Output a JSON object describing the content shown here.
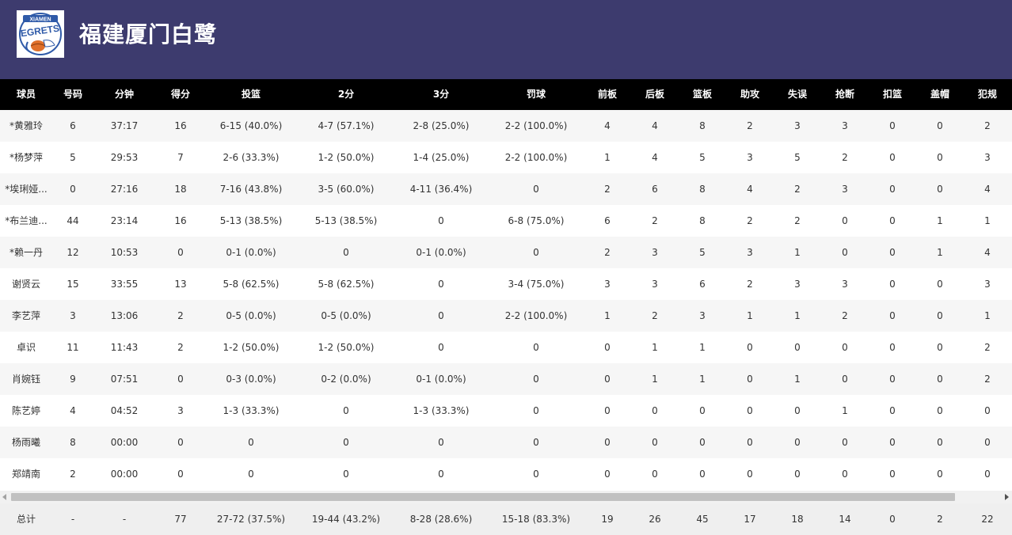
{
  "team": {
    "name": "福建厦门白鹭",
    "logo_text": "XIAMEN",
    "logo_word": "EGRETS"
  },
  "columns": [
    "球员",
    "号码",
    "分钟",
    "得分",
    "投篮",
    "2分",
    "3分",
    "罚球",
    "前板",
    "后板",
    "篮板",
    "助攻",
    "失误",
    "抢断",
    "扣篮",
    "盖帽",
    "犯规"
  ],
  "players": [
    [
      "*黄雅玲",
      "6",
      "37:17",
      "16",
      "6-15 (40.0%)",
      "4-7 (57.1%)",
      "2-8 (25.0%)",
      "2-2 (100.0%)",
      "4",
      "4",
      "8",
      "2",
      "3",
      "3",
      "0",
      "0",
      "2"
    ],
    [
      "*杨梦萍",
      "5",
      "29:53",
      "7",
      "2-6 (33.3%)",
      "1-2 (50.0%)",
      "1-4 (25.0%)",
      "2-2 (100.0%)",
      "1",
      "4",
      "5",
      "3",
      "5",
      "2",
      "0",
      "0",
      "3"
    ],
    [
      "*埃琍娅...",
      "0",
      "27:16",
      "18",
      "7-16 (43.8%)",
      "3-5 (60.0%)",
      "4-11 (36.4%)",
      "0",
      "2",
      "6",
      "8",
      "4",
      "2",
      "3",
      "0",
      "0",
      "4"
    ],
    [
      "*布兰迪...",
      "44",
      "23:14",
      "16",
      "5-13 (38.5%)",
      "5-13 (38.5%)",
      "0",
      "6-8 (75.0%)",
      "6",
      "2",
      "8",
      "2",
      "2",
      "0",
      "0",
      "1",
      "1"
    ],
    [
      "*赖一丹",
      "12",
      "10:53",
      "0",
      "0-1 (0.0%)",
      "0",
      "0-1 (0.0%)",
      "0",
      "2",
      "3",
      "5",
      "3",
      "1",
      "0",
      "0",
      "1",
      "4"
    ],
    [
      "谢贤云",
      "15",
      "33:55",
      "13",
      "5-8 (62.5%)",
      "5-8 (62.5%)",
      "0",
      "3-4 (75.0%)",
      "3",
      "3",
      "6",
      "2",
      "3",
      "3",
      "0",
      "0",
      "3"
    ],
    [
      "李艺萍",
      "3",
      "13:06",
      "2",
      "0-5 (0.0%)",
      "0-5 (0.0%)",
      "0",
      "2-2 (100.0%)",
      "1",
      "2",
      "3",
      "1",
      "1",
      "2",
      "0",
      "0",
      "1"
    ],
    [
      "卓识",
      "11",
      "11:43",
      "2",
      "1-2 (50.0%)",
      "1-2 (50.0%)",
      "0",
      "0",
      "0",
      "1",
      "1",
      "0",
      "0",
      "0",
      "0",
      "0",
      "2"
    ],
    [
      "肖婉钰",
      "9",
      "07:51",
      "0",
      "0-3 (0.0%)",
      "0-2 (0.0%)",
      "0-1 (0.0%)",
      "0",
      "0",
      "1",
      "1",
      "0",
      "1",
      "0",
      "0",
      "0",
      "2"
    ],
    [
      "陈艺婷",
      "4",
      "04:52",
      "3",
      "1-3 (33.3%)",
      "0",
      "1-3 (33.3%)",
      "0",
      "0",
      "0",
      "0",
      "0",
      "0",
      "1",
      "0",
      "0",
      "0"
    ],
    [
      "杨雨曦",
      "8",
      "00:00",
      "0",
      "0",
      "0",
      "0",
      "0",
      "0",
      "0",
      "0",
      "0",
      "0",
      "0",
      "0",
      "0",
      "0"
    ],
    [
      "郑靖南",
      "2",
      "00:00",
      "0",
      "0",
      "0",
      "0",
      "0",
      "0",
      "0",
      "0",
      "0",
      "0",
      "0",
      "0",
      "0",
      "0"
    ]
  ],
  "totals": [
    "总计",
    "-",
    "-",
    "77",
    "27-72 (37.5%)",
    "19-44 (43.2%)",
    "8-28 (28.6%)",
    "15-18 (83.3%)",
    "19",
    "26",
    "45",
    "17",
    "18",
    "14",
    "0",
    "2",
    "22"
  ],
  "colors": {
    "header_bg": "#3d3b6e",
    "table_header_bg": "#000000",
    "row_alt_bg": "#f6f6f6",
    "total_bg": "#efefef",
    "logo_blue": "#2f5aa8",
    "logo_orange": "#e0702a"
  }
}
